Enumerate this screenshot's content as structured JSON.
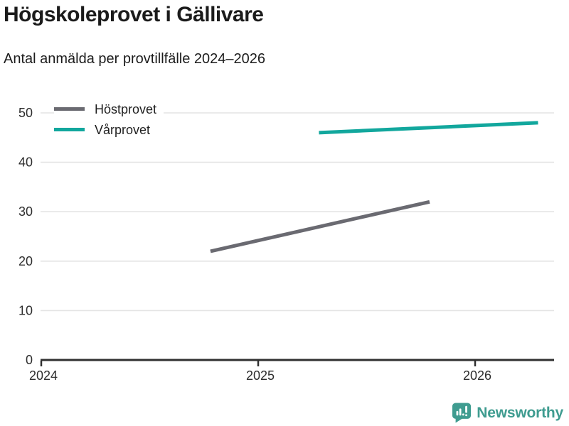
{
  "chart_data": {
    "type": "line",
    "title": "Högskoleprovet i Gällivare",
    "subtitle": "Antal anmälda per provtillfälle 2024–2026",
    "xlabel": "",
    "ylabel": "",
    "xlim": [
      2024,
      2026.36
    ],
    "ylim": [
      0,
      50
    ],
    "x_ticks": [
      "2024",
      "2025",
      "2026"
    ],
    "x_tick_values": [
      2024,
      2025,
      2026
    ],
    "y_ticks": [
      0,
      10,
      20,
      30,
      40,
      50
    ],
    "grid": true,
    "legend_position": "top-left",
    "series": [
      {
        "name": "Höstprovet",
        "color": "#6a6a71",
        "points": [
          [
            2024.78,
            22
          ],
          [
            2025.79,
            32
          ]
        ]
      },
      {
        "name": "Vårprovet",
        "color": "#12a79d",
        "points": [
          [
            2025.28,
            46
          ],
          [
            2026.29,
            48
          ]
        ]
      }
    ],
    "colors": {
      "gridline": "#e4e4e4",
      "axis": "#303030",
      "tick_label": "#2e2e2e"
    }
  },
  "footer": {
    "brand": "Newsworthy",
    "brand_color": "#3f9c90"
  }
}
